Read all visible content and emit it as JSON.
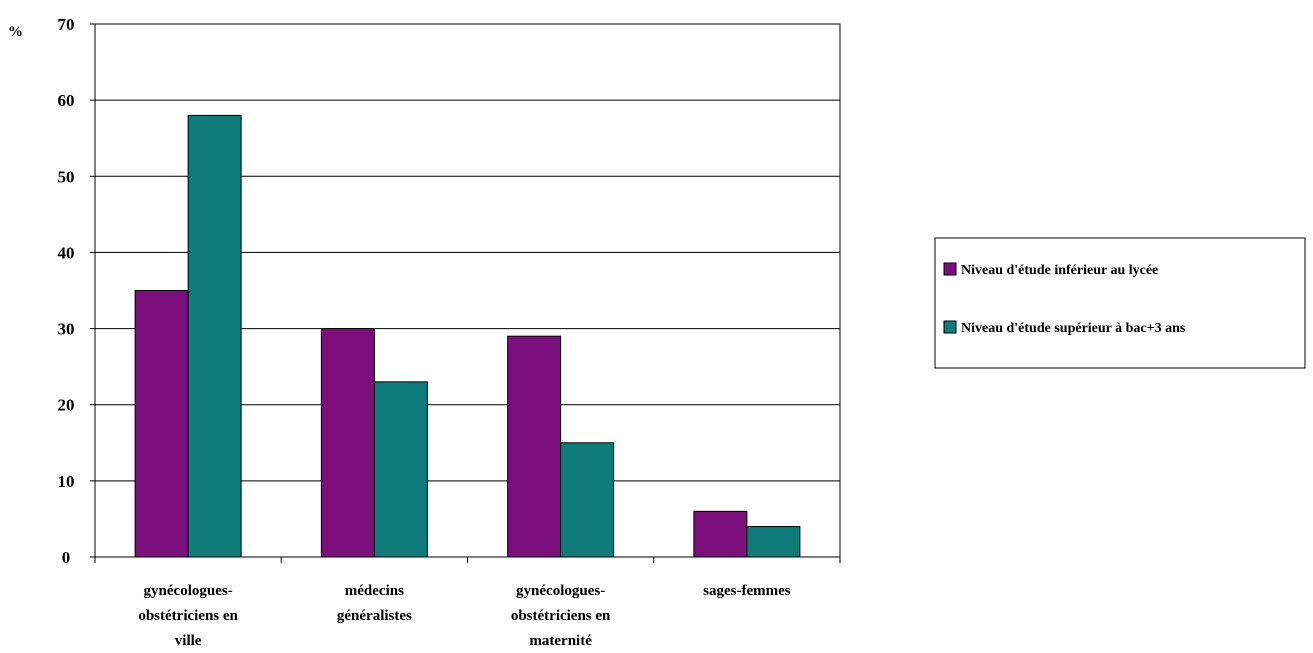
{
  "chart_data": {
    "type": "bar",
    "ylabel": "%",
    "ylim": [
      0,
      70
    ],
    "yticks": [
      0,
      10,
      20,
      30,
      40,
      50,
      60,
      70
    ],
    "grid": true,
    "legend_position": "right",
    "categories": [
      [
        "gynécologues-",
        "obstétriciens en",
        "ville"
      ],
      [
        "médecins",
        "généralistes"
      ],
      [
        "gynécologues-",
        "obstétriciens en",
        "maternité"
      ],
      [
        "sages-femmes"
      ]
    ],
    "series": [
      {
        "name": "Niveau d'étude inférieur au lycée",
        "color": "#7b0f7b",
        "values": [
          35,
          30,
          29,
          6
        ]
      },
      {
        "name": "Niveau d'étude supérieur à bac+3 ans",
        "color": "#0f7b7b",
        "values": [
          58,
          23,
          15,
          4
        ]
      }
    ]
  }
}
